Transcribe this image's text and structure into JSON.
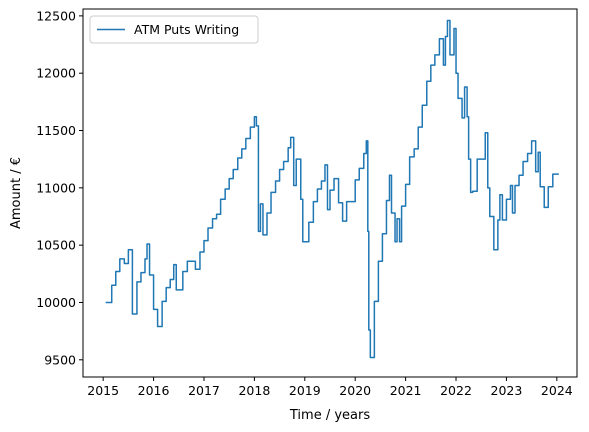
{
  "chart_data": {
    "type": "line",
    "title": "",
    "xlabel": "Time / years",
    "ylabel": "Amount / €",
    "xlim": [
      2014.6,
      2024.4
    ],
    "ylim": [
      9350,
      12560
    ],
    "x_ticks": [
      2015,
      2016,
      2017,
      2018,
      2019,
      2020,
      2021,
      2022,
      2023,
      2024
    ],
    "y_ticks": [
      9500,
      10000,
      10500,
      11000,
      11500,
      12000,
      12500
    ],
    "grid": false,
    "legend_position": "top-left",
    "series": [
      {
        "name": "ATM Puts Writing",
        "color": "#1f77b4",
        "step": true,
        "points": [
          [
            2015.05,
            10000
          ],
          [
            2015.17,
            10150
          ],
          [
            2015.25,
            10270
          ],
          [
            2015.33,
            10380
          ],
          [
            2015.42,
            10340
          ],
          [
            2015.5,
            10460
          ],
          [
            2015.58,
            9900
          ],
          [
            2015.67,
            10180
          ],
          [
            2015.75,
            10260
          ],
          [
            2015.83,
            10380
          ],
          [
            2015.87,
            10510
          ],
          [
            2015.92,
            10240
          ],
          [
            2016.0,
            9940
          ],
          [
            2016.08,
            9790
          ],
          [
            2016.17,
            10010
          ],
          [
            2016.25,
            10130
          ],
          [
            2016.33,
            10200
          ],
          [
            2016.4,
            10330
          ],
          [
            2016.45,
            10110
          ],
          [
            2016.58,
            10270
          ],
          [
            2016.67,
            10360
          ],
          [
            2016.83,
            10290
          ],
          [
            2016.92,
            10440
          ],
          [
            2017.0,
            10540
          ],
          [
            2017.08,
            10650
          ],
          [
            2017.17,
            10730
          ],
          [
            2017.25,
            10770
          ],
          [
            2017.33,
            10900
          ],
          [
            2017.42,
            10990
          ],
          [
            2017.5,
            11080
          ],
          [
            2017.58,
            11160
          ],
          [
            2017.67,
            11260
          ],
          [
            2017.75,
            11340
          ],
          [
            2017.83,
            11430
          ],
          [
            2017.92,
            11530
          ],
          [
            2018.0,
            11620
          ],
          [
            2018.04,
            11540
          ],
          [
            2018.08,
            10620
          ],
          [
            2018.12,
            10860
          ],
          [
            2018.17,
            10590
          ],
          [
            2018.25,
            10780
          ],
          [
            2018.33,
            10960
          ],
          [
            2018.42,
            11060
          ],
          [
            2018.5,
            11160
          ],
          [
            2018.58,
            11230
          ],
          [
            2018.67,
            11350
          ],
          [
            2018.72,
            11440
          ],
          [
            2018.78,
            11020
          ],
          [
            2018.83,
            11250
          ],
          [
            2018.92,
            10900
          ],
          [
            2018.96,
            10530
          ],
          [
            2019.08,
            10700
          ],
          [
            2019.17,
            10880
          ],
          [
            2019.25,
            10990
          ],
          [
            2019.33,
            11060
          ],
          [
            2019.4,
            11200
          ],
          [
            2019.45,
            10810
          ],
          [
            2019.5,
            10980
          ],
          [
            2019.58,
            11080
          ],
          [
            2019.67,
            10870
          ],
          [
            2019.75,
            10710
          ],
          [
            2019.83,
            10880
          ],
          [
            2019.92,
            10880
          ],
          [
            2020.0,
            11070
          ],
          [
            2020.08,
            11170
          ],
          [
            2020.17,
            11300
          ],
          [
            2020.22,
            11410
          ],
          [
            2020.25,
            10620
          ],
          [
            2020.27,
            9760
          ],
          [
            2020.3,
            9520
          ],
          [
            2020.38,
            10010
          ],
          [
            2020.46,
            10360
          ],
          [
            2020.54,
            10600
          ],
          [
            2020.62,
            10890
          ],
          [
            2020.68,
            11110
          ],
          [
            2020.72,
            10780
          ],
          [
            2020.79,
            10530
          ],
          [
            2020.83,
            10730
          ],
          [
            2020.88,
            10530
          ],
          [
            2020.92,
            10840
          ],
          [
            2021.0,
            11030
          ],
          [
            2021.08,
            11270
          ],
          [
            2021.17,
            11340
          ],
          [
            2021.25,
            11530
          ],
          [
            2021.33,
            11720
          ],
          [
            2021.42,
            11930
          ],
          [
            2021.5,
            12070
          ],
          [
            2021.58,
            12160
          ],
          [
            2021.67,
            12300
          ],
          [
            2021.75,
            12070
          ],
          [
            2021.79,
            12320
          ],
          [
            2021.83,
            12460
          ],
          [
            2021.88,
            12160
          ],
          [
            2021.96,
            12390
          ],
          [
            2022.0,
            12000
          ],
          [
            2022.04,
            11780
          ],
          [
            2022.12,
            11610
          ],
          [
            2022.17,
            11880
          ],
          [
            2022.22,
            11620
          ],
          [
            2022.25,
            11250
          ],
          [
            2022.29,
            10960
          ],
          [
            2022.33,
            10970
          ],
          [
            2022.42,
            11250
          ],
          [
            2022.5,
            11250
          ],
          [
            2022.58,
            11480
          ],
          [
            2022.63,
            11000
          ],
          [
            2022.67,
            10750
          ],
          [
            2022.75,
            10460
          ],
          [
            2022.83,
            10720
          ],
          [
            2022.87,
            10940
          ],
          [
            2022.92,
            10720
          ],
          [
            2023.0,
            10900
          ],
          [
            2023.08,
            11020
          ],
          [
            2023.12,
            10780
          ],
          [
            2023.17,
            11020
          ],
          [
            2023.25,
            11110
          ],
          [
            2023.33,
            11230
          ],
          [
            2023.42,
            11300
          ],
          [
            2023.5,
            11410
          ],
          [
            2023.58,
            11140
          ],
          [
            2023.63,
            11310
          ],
          [
            2023.67,
            11010
          ],
          [
            2023.75,
            10830
          ],
          [
            2023.83,
            11010
          ],
          [
            2023.92,
            11120
          ],
          [
            2024.04,
            11120
          ]
        ]
      }
    ]
  }
}
